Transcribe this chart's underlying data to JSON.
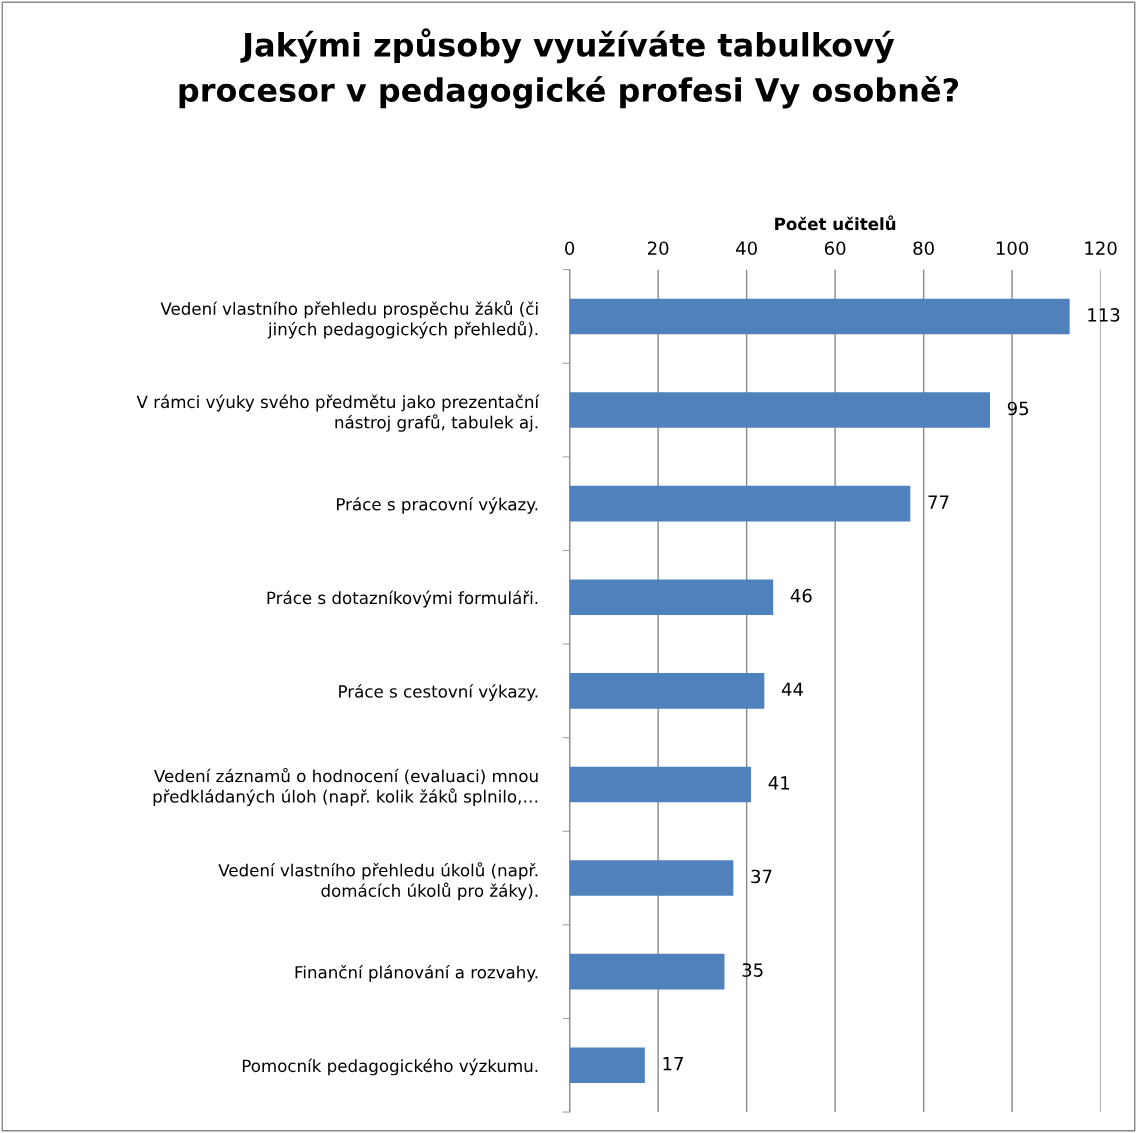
{
  "chart_data": {
    "type": "bar",
    "orientation": "horizontal",
    "title": "Jakými způsoby využíváte tabulkový\nprocesor v pedagogické profesi Vy osobně?",
    "xlabel": "Počet učitelů",
    "categories": [
      "Vedení vlastního přehledu prospěchu žáků (či\njiných pedagogických přehledů).",
      "V rámci výuky svého předmětu jako prezentační\nnástroj grafů, tabulek aj.",
      "Práce s pracovní výkazy.",
      "Práce s dotazníkovými formuláři.",
      "Práce s cestovní výkazy.",
      "Vedení záznamů o hodnocení (evaluaci) mnou\npředkládaných úloh (např. kolik žáků splnilo,…",
      "Vedení vlastního přehledu úkolů (např.\ndomácích úkolů pro žáky).",
      "Finanční plánování a rozvahy.",
      "Pomocník pedagogického výzkumu."
    ],
    "values": [
      113,
      95,
      77,
      46,
      44,
      41,
      37,
      35,
      17
    ],
    "color": "#4f81bd",
    "xlim": [
      0,
      120
    ],
    "xticks": [
      0,
      20,
      40,
      60,
      80,
      100,
      120
    ],
    "grid": "x",
    "data_labels": true
  }
}
